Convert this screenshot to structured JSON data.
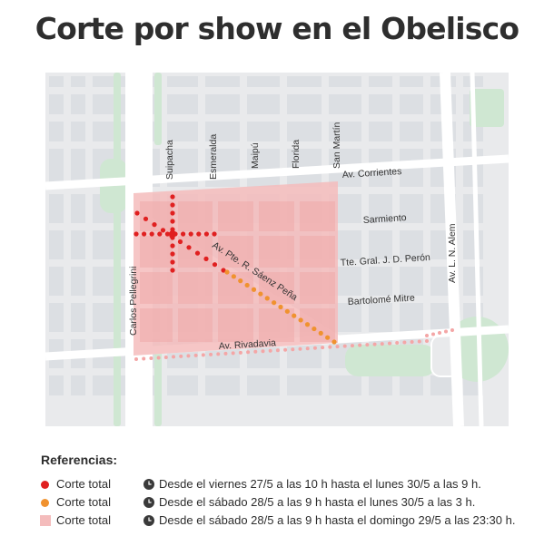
{
  "title": "Corte por show en el Obelisco",
  "map": {
    "streets": {
      "suipacha": "Suipacha",
      "esmeralda": "Esmeralda",
      "maipu": "Maipú",
      "florida": "Florida",
      "san_martin": "San Martín",
      "corrientes": "Av. Corrientes",
      "sarmiento": "Sarmiento",
      "peron": "Tte. Gral. J. D. Perón",
      "saenz_pena": "Av. Pte. R. Sáenz Peña",
      "mitre": "Bartolomé Mitre",
      "rivadavia": "Av. Rivadavia",
      "pellegrini": "Carlos Pellegrini",
      "alem": "Av. L. N. Alem"
    },
    "colors": {
      "background": "#e9eaec",
      "block": "#dcdfe3",
      "park": "#cfe7d2",
      "zone": "#f4bcbc",
      "total_red": "#e02020",
      "total_orange": "#f0922f",
      "dots_pink": "#f4a6a6"
    }
  },
  "references": {
    "title": "Referencias:",
    "items": [
      {
        "label": "Corte total",
        "symbol": "red-dot",
        "color": "#e02020",
        "description": "Desde el viernes 27/5 a las 10 h hasta el lunes 30/5 a las 9 h."
      },
      {
        "label": "Corte total",
        "symbol": "orange-dot",
        "color": "#f0922f",
        "description": "Desde el sábado 28/5 a las 9 h hasta el lunes 30/5 a las 3 h."
      },
      {
        "label": "Corte total",
        "symbol": "pink-square",
        "color": "#f4bcbc",
        "description": "Desde el sábado 28/5 a las 9 h hasta el domingo 29/5 a las 23:30 h."
      }
    ]
  }
}
